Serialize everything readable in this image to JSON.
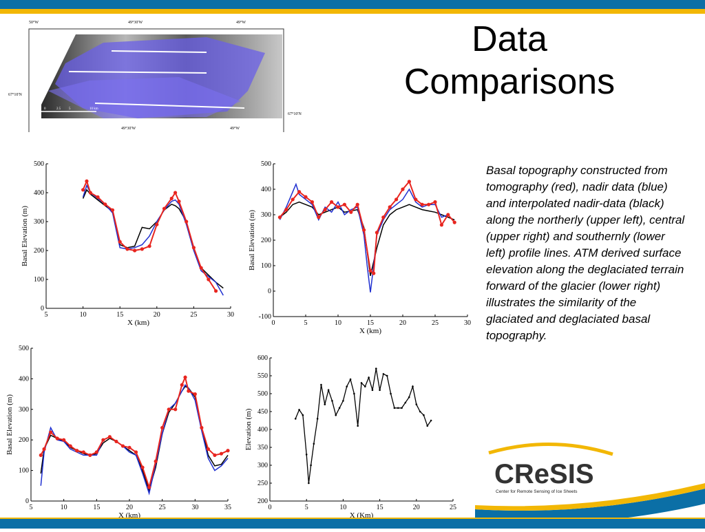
{
  "slide": {
    "title_line1": "Data",
    "title_line2": "Comparisons",
    "description": "Basal topography constructed from tomography (red), nadir data (blue) and interpolated nadir-data (black) along the northerly (upper left), central (upper right) and southernly (lower left) profile lines. ATM derived surface elevation along the deglaciated terrain forward of the glacier (lower right) illustrates the similarity of the glaciated and deglaciated basal topography."
  },
  "map": {
    "top_left_label": "50°W",
    "top_mid_label": "49°30'W",
    "top_right_label": "49°W",
    "bottom_mid_label": "49°30'W",
    "bottom_right_label": "49°W",
    "left_lat_label": "67°10'N",
    "right_lat_label": "67°10'N",
    "scale_labels": [
      "0",
      "2.5",
      "5",
      "10 km"
    ]
  },
  "logo": {
    "name": "CReSIS",
    "subtitle": "Center for Remote Sensing of Ice Sheets"
  },
  "colors": {
    "tomography": "#e8251f",
    "nadir": "#1f2fd0",
    "interpolated": "#000000",
    "accent_blue": "#0b6fa6",
    "accent_gold": "#f2b705"
  },
  "chart_data": [
    {
      "type": "line",
      "xlabel": "X (km)",
      "ylabel": "Basal Elevation (m)",
      "xlim": [
        5,
        30
      ],
      "ylim": [
        0,
        500
      ],
      "xticks": [
        5,
        10,
        15,
        20,
        25,
        30
      ],
      "yticks": [
        0,
        100,
        200,
        300,
        400,
        500
      ],
      "series": [
        {
          "key": "nadir",
          "x": [
            10,
            10.5,
            11,
            12,
            13,
            14,
            15,
            16,
            17,
            18,
            19,
            20,
            21,
            22,
            22.5,
            23,
            24,
            25,
            26,
            27,
            28,
            29
          ],
          "values": [
            385,
            425,
            400,
            380,
            360,
            330,
            210,
            205,
            210,
            220,
            250,
            300,
            340,
            370,
            375,
            360,
            290,
            200,
            130,
            110,
            90,
            45
          ]
        },
        {
          "key": "interpolated",
          "x": [
            10,
            10.5,
            11,
            12,
            13,
            14,
            15,
            16,
            17,
            18,
            19,
            20,
            21,
            22,
            22.5,
            23,
            24,
            25,
            26,
            27,
            28,
            29
          ],
          "values": [
            380,
            410,
            395,
            375,
            355,
            335,
            220,
            210,
            215,
            280,
            275,
            300,
            340,
            360,
            355,
            345,
            300,
            210,
            140,
            115,
            90,
            70
          ]
        },
        {
          "key": "tomography",
          "x": [
            10,
            10.5,
            11,
            12,
            13,
            14,
            15,
            16,
            17,
            18,
            19,
            20,
            21,
            22,
            22.5,
            23,
            24,
            25,
            26,
            27,
            28
          ],
          "values": [
            410,
            440,
            400,
            385,
            360,
            340,
            230,
            205,
            200,
            205,
            215,
            290,
            345,
            380,
            400,
            370,
            300,
            210,
            140,
            100,
            60
          ]
        }
      ]
    },
    {
      "type": "line",
      "xlabel": "X (km)",
      "ylabel": "Basal Elevation (m)",
      "xlim": [
        0,
        30
      ],
      "ylim": [
        -100,
        500
      ],
      "xticks": [
        0,
        5,
        10,
        15,
        20,
        25,
        30
      ],
      "yticks": [
        -100,
        0,
        100,
        200,
        300,
        400,
        500
      ],
      "series": [
        {
          "key": "nadir",
          "x": [
            1,
            2,
            3,
            3.5,
            4,
            5,
            6,
            7,
            8,
            9,
            10,
            11,
            12,
            13,
            14,
            14.5,
            15,
            15.5,
            16,
            17,
            18,
            19,
            20,
            21,
            22,
            23,
            24,
            25,
            26,
            27,
            28
          ],
          "values": [
            280,
            330,
            390,
            420,
            380,
            360,
            340,
            280,
            330,
            310,
            350,
            300,
            320,
            330,
            220,
            100,
            -5,
            100,
            220,
            280,
            320,
            340,
            360,
            400,
            350,
            330,
            340,
            340,
            290,
            300,
            270
          ]
        },
        {
          "key": "interpolated",
          "x": [
            1,
            2,
            3,
            4,
            5,
            6,
            7,
            8,
            9,
            10,
            11,
            12,
            13,
            14,
            15,
            16,
            17,
            18,
            19,
            20,
            21,
            22,
            23,
            24,
            25,
            26,
            27,
            28
          ],
          "values": [
            290,
            310,
            340,
            350,
            340,
            330,
            300,
            310,
            320,
            330,
            310,
            315,
            320,
            250,
            60,
            170,
            260,
            300,
            320,
            330,
            340,
            330,
            320,
            315,
            310,
            300,
            290,
            280
          ]
        },
        {
          "key": "tomography",
          "x": [
            1,
            2,
            3,
            4,
            5,
            6,
            7,
            8,
            9,
            10,
            11,
            12,
            13,
            14,
            15,
            15.5,
            16,
            17,
            18,
            19,
            20,
            21,
            22,
            23,
            24,
            25,
            26,
            27,
            28
          ],
          "values": [
            290,
            320,
            360,
            390,
            370,
            350,
            290,
            320,
            350,
            330,
            340,
            310,
            340,
            240,
            80,
            70,
            230,
            290,
            330,
            360,
            400,
            430,
            360,
            340,
            340,
            350,
            260,
            300,
            270
          ]
        }
      ]
    },
    {
      "type": "line",
      "xlabel": "X (km)",
      "ylabel": "Basal Elevation (m)",
      "xlim": [
        5,
        35
      ],
      "ylim": [
        0,
        500
      ],
      "xticks": [
        5,
        10,
        15,
        20,
        25,
        30,
        35
      ],
      "yticks": [
        0,
        100,
        200,
        300,
        400,
        500
      ],
      "series": [
        {
          "key": "nadir",
          "x": [
            6.5,
            7,
            8,
            9,
            10,
            11,
            12,
            13,
            14,
            15,
            16,
            17,
            18,
            19,
            20,
            21,
            22,
            23,
            24,
            25,
            26,
            27,
            28,
            28.5,
            29,
            30,
            31,
            32,
            33,
            34,
            35
          ],
          "values": [
            50,
            160,
            240,
            200,
            195,
            170,
            160,
            150,
            150,
            150,
            200,
            210,
            195,
            180,
            160,
            150,
            90,
            25,
            120,
            220,
            300,
            320,
            360,
            380,
            370,
            330,
            230,
            140,
            100,
            115,
            140
          ]
        },
        {
          "key": "interpolated",
          "x": [
            6.5,
            7,
            8,
            9,
            10,
            11,
            12,
            13,
            14,
            15,
            16,
            17,
            18,
            19,
            20,
            21,
            22,
            23,
            24,
            25,
            26,
            27,
            28,
            28.5,
            29,
            30,
            31,
            32,
            33,
            34,
            35
          ],
          "values": [
            90,
            170,
            215,
            205,
            195,
            175,
            165,
            155,
            150,
            155,
            190,
            205,
            195,
            180,
            165,
            150,
            100,
            35,
            110,
            220,
            290,
            320,
            360,
            375,
            370,
            340,
            240,
            150,
            115,
            120,
            150
          ]
        },
        {
          "key": "tomography",
          "x": [
            6.5,
            7,
            8,
            9,
            10,
            11,
            12,
            13,
            14,
            15,
            16,
            17,
            18,
            19,
            20,
            21,
            22,
            23,
            24,
            25,
            26,
            27,
            28,
            28.5,
            29,
            30,
            31,
            32,
            33,
            34,
            35
          ],
          "values": [
            150,
            170,
            225,
            205,
            200,
            180,
            165,
            160,
            150,
            160,
            200,
            210,
            195,
            180,
            175,
            160,
            110,
            45,
            130,
            240,
            300,
            300,
            380,
            405,
            360,
            350,
            240,
            170,
            150,
            155,
            165
          ]
        }
      ]
    },
    {
      "type": "line",
      "xlabel": "X (Km)",
      "ylabel": "Elevation (m)",
      "xlim": [
        0,
        25
      ],
      "ylim": [
        200,
        600
      ],
      "xticks": [
        0,
        5,
        10,
        15,
        20,
        25
      ],
      "yticks": [
        200,
        250,
        300,
        350,
        400,
        450,
        500,
        550,
        600
      ],
      "series": [
        {
          "key": "interpolated",
          "x": [
            3.5,
            4,
            4.5,
            5,
            5.3,
            5.6,
            6,
            6.5,
            7,
            7.5,
            8,
            8.5,
            9,
            9.5,
            10,
            10.5,
            11,
            11.5,
            12,
            12.5,
            13,
            13.5,
            14,
            14.5,
            15,
            15.5,
            16,
            16.5,
            17,
            17.5,
            18,
            18.5,
            19,
            19.5,
            20,
            20.5,
            21,
            21.5,
            22
          ],
          "values": [
            430,
            455,
            440,
            330,
            250,
            300,
            360,
            430,
            525,
            470,
            510,
            480,
            440,
            460,
            480,
            520,
            540,
            500,
            410,
            530,
            520,
            545,
            510,
            570,
            510,
            555,
            550,
            500,
            460,
            460,
            460,
            475,
            490,
            520,
            470,
            450,
            440,
            410,
            425
          ]
        }
      ]
    }
  ]
}
